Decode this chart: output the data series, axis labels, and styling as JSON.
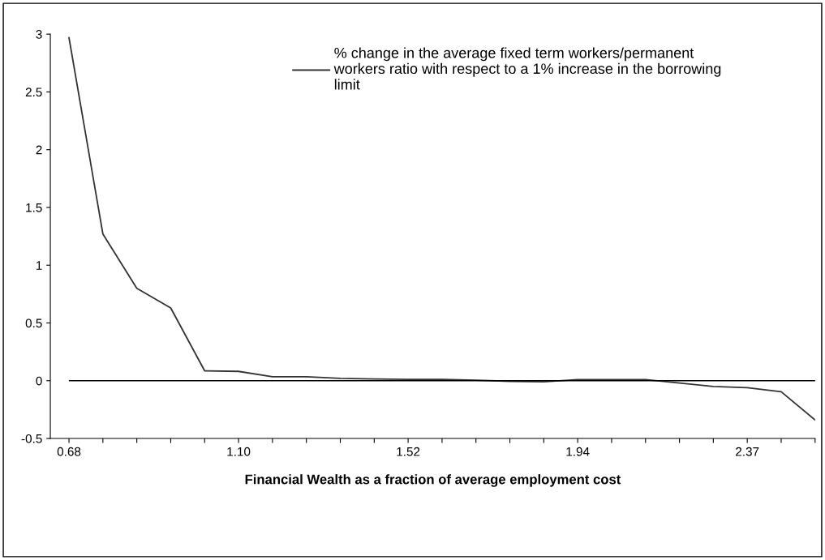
{
  "chart_data": {
    "type": "line",
    "xlabel": "Financial Wealth as a fraction of average employment cost",
    "categories": [
      "0.68",
      null,
      null,
      null,
      null,
      "1.10",
      null,
      null,
      null,
      null,
      "1.52",
      null,
      null,
      null,
      null,
      "1.94",
      null,
      null,
      null,
      null,
      "2.37",
      null,
      null
    ],
    "series": [
      {
        "name": "% change in the average fixed term workers/permanent\nworkers ratio with respect to a 1% increase in the borrowing\nlimit",
        "color": "#333333",
        "values": [
          2.97,
          1.27,
          0.8,
          0.63,
          0.086,
          0.081,
          0.034,
          0.034,
          0.02,
          0.015,
          0.012,
          0.012,
          0.005,
          -0.005,
          -0.01,
          0.01,
          0.01,
          0.01,
          -0.02,
          -0.05,
          -0.06,
          -0.095,
          -0.34
        ]
      }
    ],
    "ylim": [
      -0.5,
      3
    ],
    "yticks": [
      -0.5,
      0,
      0.5,
      1,
      1.5,
      2,
      2.5,
      3
    ],
    "ref_lines": [
      {
        "axis": "y",
        "value": 0,
        "label": null,
        "color": "#000000"
      }
    ],
    "legend": "top",
    "grid": false,
    "marker": "none",
    "line_style": "solid"
  }
}
